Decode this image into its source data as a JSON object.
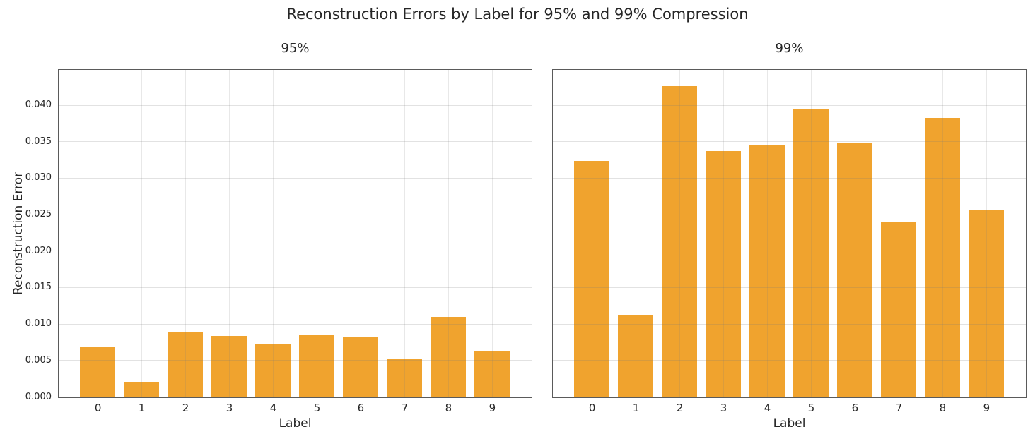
{
  "figure": {
    "title": "Reconstruction Errors by Label for 95% and 99% Compression",
    "background_color": "#ffffff",
    "text_color": "#262626",
    "spine_color": "#5a5a5a"
  },
  "chart_data": [
    {
      "type": "bar",
      "title": "95%",
      "xlabel": "Label",
      "ylabel": "Reconstruction Error",
      "categories": [
        "0",
        "1",
        "2",
        "3",
        "4",
        "5",
        "6",
        "7",
        "8",
        "9"
      ],
      "values": [
        0.007,
        0.0021,
        0.009,
        0.0084,
        0.0073,
        0.0085,
        0.0083,
        0.0053,
        0.011,
        0.0064
      ],
      "xlim": [
        -0.89,
        9.89
      ],
      "ylim": [
        0,
        0.0448
      ],
      "yticks": [
        0.0,
        0.005,
        0.01,
        0.015,
        0.02,
        0.025,
        0.03,
        0.035,
        0.04
      ],
      "ytick_decimals": 3,
      "show_ytick_labels": true,
      "bar_color": "#F0A32E",
      "bar_width": 0.8,
      "grid": true,
      "legend_position": "none"
    },
    {
      "type": "bar",
      "title": "99%",
      "xlabel": "Label",
      "ylabel": "",
      "categories": [
        "0",
        "1",
        "2",
        "3",
        "4",
        "5",
        "6",
        "7",
        "8",
        "9"
      ],
      "values": [
        0.0324,
        0.0113,
        0.0427,
        0.0338,
        0.0346,
        0.0396,
        0.0349,
        0.024,
        0.0383,
        0.0257
      ],
      "xlim": [
        -0.89,
        9.89
      ],
      "ylim": [
        0,
        0.0448
      ],
      "yticks": [
        0.0,
        0.005,
        0.01,
        0.015,
        0.02,
        0.025,
        0.03,
        0.035,
        0.04
      ],
      "ytick_decimals": 3,
      "show_ytick_labels": false,
      "bar_color": "#F0A32E",
      "bar_width": 0.8,
      "grid": true,
      "legend_position": "none"
    }
  ]
}
